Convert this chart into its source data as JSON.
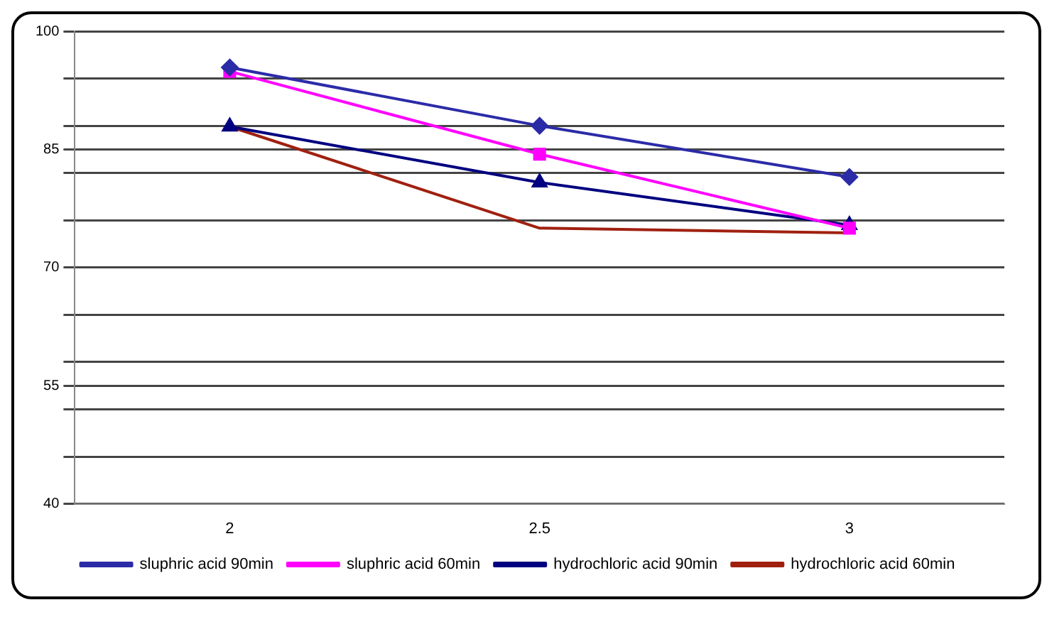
{
  "chart_data": {
    "type": "line",
    "categories": [
      "2",
      "2.5",
      "3"
    ],
    "series": [
      {
        "name": "sluphric acid 90min",
        "color": "#2b2ba8",
        "marker": "diamond",
        "values": [
          95.4,
          88.0,
          81.5
        ]
      },
      {
        "name": "sluphric acid 60min",
        "color": "#ff00ff",
        "marker": "square",
        "values": [
          94.9,
          84.4,
          75.0
        ]
      },
      {
        "name": "hydrochloric acid 90min",
        "color": "#000080",
        "marker": "triangle",
        "values": [
          87.9,
          80.8,
          75.4
        ]
      },
      {
        "name": "hydrochloric acid 60min",
        "color": "#a02010",
        "marker": "none",
        "values": [
          87.9,
          75.0,
          74.4
        ]
      }
    ],
    "ylim": [
      40,
      100
    ],
    "yticks": [
      40,
      {
        "value": 46,
        "label": null
      },
      {
        "value": 52,
        "label": null
      },
      {
        "value": 55,
        "label": "55"
      },
      {
        "value": 58,
        "label": null
      },
      {
        "value": 64,
        "label": null
      },
      {
        "value": 70,
        "label": "70"
      },
      {
        "value": 76,
        "label": null
      },
      {
        "value": 82,
        "label": null
      },
      {
        "value": 85,
        "label": "85"
      },
      {
        "value": 88,
        "label": null
      },
      {
        "value": 94,
        "label": null
      },
      100
    ],
    "grid": "y",
    "legend": "bottom"
  }
}
